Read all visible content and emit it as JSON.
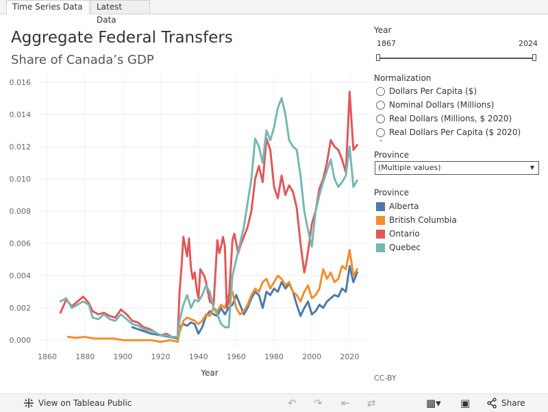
{
  "tabs": [
    {
      "label": "Time Series Data",
      "active": true
    },
    {
      "label": "Latest Data",
      "active": false
    }
  ],
  "header": {
    "title": "Aggregate Federal Transfers",
    "subtitle": "Share of Canada’s GDP"
  },
  "filters": {
    "year": {
      "label": "Year",
      "min": "1867",
      "max": "2024"
    },
    "normalization": {
      "label": "Normalization",
      "options": [
        "Dollars Per Capita ($)",
        "Nominal Dollars (Millions)",
        "Real Dollars (Millions, $ 2020)",
        "Real Dollars Per Capita ($ 2020)"
      ]
    },
    "province": {
      "label": "Province",
      "value": "(Multiple values)"
    }
  },
  "legend": {
    "title": "Province",
    "items": [
      {
        "name": "Alberta",
        "color": "#4e79a7"
      },
      {
        "name": "British Columbia",
        "color": "#f28e2b"
      },
      {
        "name": "Ontario",
        "color": "#e15759"
      },
      {
        "name": "Quebec",
        "color": "#76b7b2"
      }
    ]
  },
  "footer": {
    "license": "CC-BY",
    "view_label": "View on Tableau Public",
    "share_label": "Share"
  },
  "chart_data": {
    "type": "line",
    "title": "Aggregate Federal Transfers",
    "subtitle": "Share of Canada’s GDP",
    "xlabel": "Year",
    "ylabel": "",
    "xlim": [
      1856,
      2030
    ],
    "ylim": [
      -0.0005,
      0.0165
    ],
    "x_ticks": [
      1860,
      1880,
      1900,
      1920,
      1940,
      1960,
      1980,
      2000,
      2020
    ],
    "y_ticks": [
      0.0,
      0.002,
      0.004,
      0.006,
      0.008,
      0.01,
      0.012,
      0.014,
      0.016
    ],
    "y_tick_labels": [
      "0.000",
      "0.002",
      "0.004",
      "0.006",
      "0.008",
      "0.010",
      "0.012",
      "0.014",
      "0.016"
    ],
    "series": [
      {
        "name": "Alberta",
        "color": "#4e79a7",
        "points": [
          [
            1905,
            0.0008
          ],
          [
            1910,
            0.0006
          ],
          [
            1915,
            0.0004
          ],
          [
            1920,
            0.0003
          ],
          [
            1925,
            0.0002
          ],
          [
            1929,
            0.0001
          ],
          [
            1930,
            0.0008
          ],
          [
            1932,
            0.001
          ],
          [
            1934,
            0.0009
          ],
          [
            1936,
            0.0011
          ],
          [
            1938,
            0.001
          ],
          [
            1940,
            0.0004
          ],
          [
            1942,
            0.0008
          ],
          [
            1944,
            0.0015
          ],
          [
            1946,
            0.0018
          ],
          [
            1948,
            0.0016
          ],
          [
            1950,
            0.0015
          ],
          [
            1952,
            0.002
          ],
          [
            1954,
            0.0016
          ],
          [
            1956,
            0.002
          ],
          [
            1958,
            0.0022
          ],
          [
            1960,
            0.0028
          ],
          [
            1962,
            0.0022
          ],
          [
            1964,
            0.0016
          ],
          [
            1966,
            0.002
          ],
          [
            1968,
            0.0026
          ],
          [
            1970,
            0.003
          ],
          [
            1972,
            0.0028
          ],
          [
            1974,
            0.002
          ],
          [
            1976,
            0.003
          ],
          [
            1978,
            0.0028
          ],
          [
            1980,
            0.0032
          ],
          [
            1982,
            0.003
          ],
          [
            1984,
            0.0036
          ],
          [
            1986,
            0.0032
          ],
          [
            1988,
            0.0035
          ],
          [
            1990,
            0.003
          ],
          [
            1992,
            0.0022
          ],
          [
            1994,
            0.0015
          ],
          [
            1996,
            0.002
          ],
          [
            1998,
            0.0024
          ],
          [
            2000,
            0.0016
          ],
          [
            2002,
            0.0018
          ],
          [
            2004,
            0.0022
          ],
          [
            2006,
            0.002
          ],
          [
            2008,
            0.0024
          ],
          [
            2010,
            0.0026
          ],
          [
            2012,
            0.0028
          ],
          [
            2014,
            0.0027
          ],
          [
            2016,
            0.0032
          ],
          [
            2018,
            0.003
          ],
          [
            2020,
            0.0046
          ],
          [
            2022,
            0.0036
          ],
          [
            2024,
            0.0042
          ]
        ]
      },
      {
        "name": "British Columbia",
        "color": "#f28e2b",
        "points": [
          [
            1871,
            0.0002
          ],
          [
            1875,
            0.00015
          ],
          [
            1880,
            0.0002
          ],
          [
            1885,
            0.0001
          ],
          [
            1890,
            0.0001
          ],
          [
            1895,
            0.0001
          ],
          [
            1900,
            0.0
          ],
          [
            1905,
            0.0
          ],
          [
            1910,
            0.0
          ],
          [
            1915,
            0.0
          ],
          [
            1920,
            -0.0001
          ],
          [
            1925,
            0.0
          ],
          [
            1929,
            -0.0001
          ],
          [
            1930,
            0.0005
          ],
          [
            1932,
            0.0012
          ],
          [
            1934,
            0.0014
          ],
          [
            1936,
            0.0013
          ],
          [
            1938,
            0.0012
          ],
          [
            1940,
            0.001
          ],
          [
            1942,
            0.0012
          ],
          [
            1944,
            0.0016
          ],
          [
            1946,
            0.0015
          ],
          [
            1948,
            0.002
          ],
          [
            1950,
            0.0018
          ],
          [
            1952,
            0.0022
          ],
          [
            1954,
            0.002
          ],
          [
            1956,
            0.0028
          ],
          [
            1958,
            0.003
          ],
          [
            1960,
            0.002
          ],
          [
            1962,
            0.0016
          ],
          [
            1964,
            0.0018
          ],
          [
            1966,
            0.0022
          ],
          [
            1968,
            0.0028
          ],
          [
            1970,
            0.0032
          ],
          [
            1972,
            0.003
          ],
          [
            1974,
            0.0036
          ],
          [
            1976,
            0.0038
          ],
          [
            1978,
            0.0032
          ],
          [
            1980,
            0.0036
          ],
          [
            1982,
            0.004
          ],
          [
            1984,
            0.0038
          ],
          [
            1986,
            0.0034
          ],
          [
            1988,
            0.0036
          ],
          [
            1990,
            0.003
          ],
          [
            1992,
            0.0028
          ],
          [
            1994,
            0.0024
          ],
          [
            1996,
            0.003
          ],
          [
            1998,
            0.0034
          ],
          [
            2000,
            0.0026
          ],
          [
            2002,
            0.0028
          ],
          [
            2004,
            0.0032
          ],
          [
            2006,
            0.0044
          ],
          [
            2008,
            0.0038
          ],
          [
            2010,
            0.0042
          ],
          [
            2012,
            0.0036
          ],
          [
            2014,
            0.0038
          ],
          [
            2016,
            0.0046
          ],
          [
            2018,
            0.0044
          ],
          [
            2020,
            0.0056
          ],
          [
            2022,
            0.004
          ],
          [
            2024,
            0.0044
          ]
        ]
      },
      {
        "name": "Ontario",
        "color": "#e15759",
        "points": [
          [
            1867,
            0.0017
          ],
          [
            1870,
            0.0025
          ],
          [
            1873,
            0.0021
          ],
          [
            1876,
            0.0024
          ],
          [
            1879,
            0.0027
          ],
          [
            1882,
            0.0023
          ],
          [
            1884,
            0.0018
          ],
          [
            1887,
            0.0016
          ],
          [
            1890,
            0.0017
          ],
          [
            1893,
            0.0015
          ],
          [
            1896,
            0.0014
          ],
          [
            1899,
            0.0019
          ],
          [
            1902,
            0.0016
          ],
          [
            1905,
            0.0012
          ],
          [
            1908,
            0.0011
          ],
          [
            1911,
            0.0008
          ],
          [
            1914,
            0.0007
          ],
          [
            1917,
            0.0005
          ],
          [
            1920,
            0.0003
          ],
          [
            1923,
            0.0004
          ],
          [
            1926,
            0.0002
          ],
          [
            1929,
            0.0002
          ],
          [
            1930,
            0.003
          ],
          [
            1931,
            0.0045
          ],
          [
            1932,
            0.0064
          ],
          [
            1933,
            0.0058
          ],
          [
            1934,
            0.0052
          ],
          [
            1935,
            0.0063
          ],
          [
            1936,
            0.0045
          ],
          [
            1937,
            0.0038
          ],
          [
            1938,
            0.0042
          ],
          [
            1939,
            0.0032
          ],
          [
            1940,
            0.0026
          ],
          [
            1941,
            0.0044
          ],
          [
            1942,
            0.0042
          ],
          [
            1943,
            0.004
          ],
          [
            1944,
            0.0036
          ],
          [
            1946,
            0.0024
          ],
          [
            1948,
            0.0022
          ],
          [
            1950,
            0.0062
          ],
          [
            1951,
            0.0054
          ],
          [
            1952,
            0.0058
          ],
          [
            1953,
            0.0064
          ],
          [
            1954,
            0.0058
          ],
          [
            1955,
            0.002
          ],
          [
            1956,
            0.0024
          ],
          [
            1958,
            0.0062
          ],
          [
            1959,
            0.0066
          ],
          [
            1960,
            0.006
          ],
          [
            1961,
            0.0054
          ],
          [
            1962,
            0.0058
          ],
          [
            1964,
            0.0064
          ],
          [
            1966,
            0.007
          ],
          [
            1968,
            0.008
          ],
          [
            1970,
            0.01
          ],
          [
            1972,
            0.0108
          ],
          [
            1974,
            0.0098
          ],
          [
            1976,
            0.0125
          ],
          [
            1978,
            0.0118
          ],
          [
            1980,
            0.0095
          ],
          [
            1982,
            0.0088
          ],
          [
            1984,
            0.0102
          ],
          [
            1986,
            0.009
          ],
          [
            1988,
            0.0096
          ],
          [
            1990,
            0.0092
          ],
          [
            1992,
            0.0082
          ],
          [
            1994,
            0.006
          ],
          [
            1996,
            0.0042
          ],
          [
            1997,
            0.0048
          ],
          [
            1998,
            0.0055
          ],
          [
            2000,
            0.0072
          ],
          [
            2002,
            0.008
          ],
          [
            2004,
            0.0094
          ],
          [
            2006,
            0.01
          ],
          [
            2008,
            0.011
          ],
          [
            2010,
            0.0124
          ],
          [
            2012,
            0.012
          ],
          [
            2014,
            0.0118
          ],
          [
            2016,
            0.0112
          ],
          [
            2018,
            0.0104
          ],
          [
            2020,
            0.0154
          ],
          [
            2022,
            0.0118
          ],
          [
            2024,
            0.0121
          ]
        ]
      },
      {
        "name": "Quebec",
        "color": "#76b7b2",
        "points": [
          [
            1867,
            0.0024
          ],
          [
            1870,
            0.0026
          ],
          [
            1873,
            0.002
          ],
          [
            1876,
            0.0022
          ],
          [
            1879,
            0.0024
          ],
          [
            1882,
            0.0022
          ],
          [
            1884,
            0.0014
          ],
          [
            1887,
            0.0013
          ],
          [
            1890,
            0.0016
          ],
          [
            1893,
            0.0013
          ],
          [
            1896,
            0.0012
          ],
          [
            1899,
            0.0016
          ],
          [
            1902,
            0.0013
          ],
          [
            1905,
            0.001
          ],
          [
            1908,
            0.0009
          ],
          [
            1911,
            0.0007
          ],
          [
            1914,
            0.0006
          ],
          [
            1917,
            0.0005
          ],
          [
            1920,
            0.0003
          ],
          [
            1923,
            0.0003
          ],
          [
            1926,
            0.0002
          ],
          [
            1929,
            0.0002
          ],
          [
            1930,
            0.0012
          ],
          [
            1932,
            0.0022
          ],
          [
            1934,
            0.0028
          ],
          [
            1936,
            0.002
          ],
          [
            1938,
            0.0025
          ],
          [
            1940,
            0.0024
          ],
          [
            1942,
            0.0028
          ],
          [
            1944,
            0.0034
          ],
          [
            1946,
            0.003
          ],
          [
            1948,
            0.002
          ],
          [
            1950,
            0.0016
          ],
          [
            1952,
            0.001
          ],
          [
            1954,
            0.0008
          ],
          [
            1956,
            0.0008
          ],
          [
            1958,
            0.004
          ],
          [
            1960,
            0.005
          ],
          [
            1962,
            0.006
          ],
          [
            1964,
            0.007
          ],
          [
            1966,
            0.0085
          ],
          [
            1968,
            0.01
          ],
          [
            1970,
            0.0125
          ],
          [
            1972,
            0.012
          ],
          [
            1974,
            0.011
          ],
          [
            1976,
            0.013
          ],
          [
            1978,
            0.0124
          ],
          [
            1980,
            0.0132
          ],
          [
            1982,
            0.0144
          ],
          [
            1984,
            0.015
          ],
          [
            1986,
            0.014
          ],
          [
            1988,
            0.0124
          ],
          [
            1990,
            0.012
          ],
          [
            1992,
            0.0118
          ],
          [
            1994,
            0.0102
          ],
          [
            1996,
            0.008
          ],
          [
            1998,
            0.0068
          ],
          [
            2000,
            0.0058
          ],
          [
            2002,
            0.008
          ],
          [
            2004,
            0.009
          ],
          [
            2006,
            0.0098
          ],
          [
            2008,
            0.0105
          ],
          [
            2010,
            0.0112
          ],
          [
            2012,
            0.01
          ],
          [
            2014,
            0.0095
          ],
          [
            2016,
            0.0098
          ],
          [
            2018,
            0.0102
          ],
          [
            2020,
            0.012
          ],
          [
            2022,
            0.0095
          ],
          [
            2024,
            0.0099
          ]
        ]
      }
    ]
  }
}
